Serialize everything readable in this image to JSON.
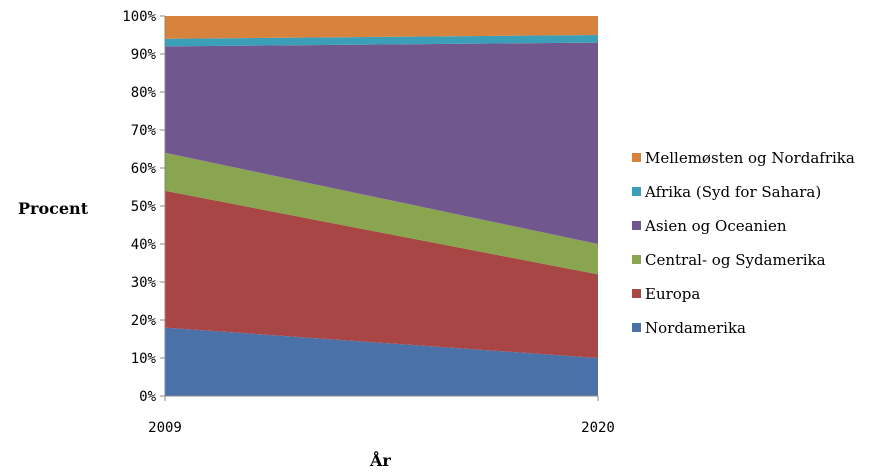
{
  "chart_data": {
    "type": "area",
    "stacked": true,
    "percent": true,
    "x": [
      "2009",
      "2020"
    ],
    "xlabel": "År",
    "ylabel": "Procent",
    "ylim": [
      0,
      100
    ],
    "yticks": [
      "0%",
      "10%",
      "20%",
      "30%",
      "40%",
      "50%",
      "60%",
      "70%",
      "80%",
      "90%",
      "100%"
    ],
    "legend_position": "right",
    "series": [
      {
        "name": "Nordamerika",
        "values": [
          18,
          10
        ],
        "color": "#4a72a8"
      },
      {
        "name": "Europa",
        "values": [
          36,
          22
        ],
        "color": "#a84645"
      },
      {
        "name": "Central- og Sydamerika",
        "values": [
          10,
          8
        ],
        "color": "#8aa54f"
      },
      {
        "name": "Asien og Oceanien",
        "values": [
          28,
          53
        ],
        "color": "#70578e"
      },
      {
        "name": "Afrika (Syd for Sahara)",
        "values": [
          2,
          2
        ],
        "color": "#3c9fb8"
      },
      {
        "name": "Mellemøsten og Nordafrika",
        "values": [
          6,
          5
        ],
        "color": "#d8833d"
      }
    ]
  }
}
